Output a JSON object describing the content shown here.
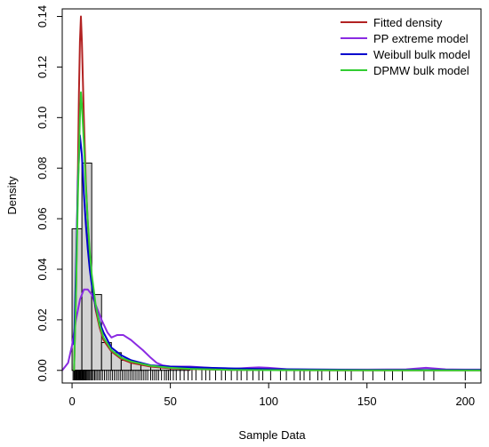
{
  "chart_data": {
    "type": "line",
    "title": "",
    "xlabel": "Sample Data",
    "ylabel": "Density",
    "xlim": [
      -5,
      208
    ],
    "ylim": [
      -0.005,
      0.143
    ],
    "x_ticks": [
      0,
      50,
      100,
      150,
      200
    ],
    "y_ticks": [
      0.0,
      0.02,
      0.04,
      0.06,
      0.08,
      0.1,
      0.12,
      0.14
    ],
    "x_tick_labels": [
      "0",
      "50",
      "100",
      "150",
      "200"
    ],
    "y_tick_labels": [
      "0.00",
      "0.02",
      "0.04",
      "0.06",
      "0.08",
      "0.10",
      "0.12",
      "0.14"
    ],
    "legend_position": "top-right",
    "histogram": {
      "bin_edges": [
        0,
        5,
        10,
        15,
        20,
        25,
        30,
        35,
        40,
        45,
        50,
        55,
        60
      ],
      "density": [
        0.056,
        0.082,
        0.03,
        0.011,
        0.007,
        0.004,
        0.003,
        0.002,
        0.0015,
        0.001,
        0.0008,
        0.0005
      ],
      "fill": "#d3d3d3",
      "stroke": "#000000"
    },
    "series": [
      {
        "name": "Fitted density",
        "color": "#b22222",
        "x": [
          1,
          2,
          3,
          3.5,
          4,
          4.5,
          5,
          6,
          7,
          8,
          9,
          10,
          12,
          14,
          16,
          20,
          25,
          30,
          40,
          50,
          60,
          80,
          100,
          150,
          208
        ],
        "y": [
          0.0,
          0.03,
          0.08,
          0.11,
          0.13,
          0.14,
          0.13,
          0.1,
          0.075,
          0.058,
          0.045,
          0.036,
          0.024,
          0.017,
          0.012,
          0.0075,
          0.0045,
          0.003,
          0.0015,
          0.0008,
          0.0005,
          0.0002,
          0.0001,
          0.0,
          0.0
        ]
      },
      {
        "name": "PP extreme model",
        "color": "#8a2be2",
        "x": [
          -5,
          -2,
          0,
          2,
          4,
          6,
          8,
          10,
          12,
          15,
          18,
          20,
          23,
          26,
          30,
          33,
          36,
          40,
          43,
          46,
          50,
          55,
          60,
          70,
          80,
          90,
          95,
          100,
          110,
          120,
          130,
          150,
          170,
          180,
          190,
          200,
          208
        ],
        "y": [
          0.0,
          0.003,
          0.01,
          0.02,
          0.028,
          0.032,
          0.032,
          0.03,
          0.026,
          0.02,
          0.015,
          0.013,
          0.014,
          0.014,
          0.012,
          0.01,
          0.008,
          0.005,
          0.003,
          0.002,
          0.0015,
          0.0015,
          0.0015,
          0.001,
          0.0005,
          0.001,
          0.0012,
          0.001,
          0.0004,
          0.0003,
          0.0003,
          0.0003,
          0.0004,
          0.001,
          0.0004,
          0.0003,
          0.0003
        ]
      },
      {
        "name": "Weibull bulk model",
        "color": "#0000cd",
        "x": [
          1,
          2,
          3,
          4,
          5,
          6,
          7,
          8,
          9,
          10,
          12,
          14,
          16,
          20,
          25,
          30,
          40,
          50,
          60,
          80,
          100,
          150,
          208
        ],
        "y": [
          0.01,
          0.04,
          0.075,
          0.093,
          0.085,
          0.07,
          0.058,
          0.048,
          0.04,
          0.034,
          0.025,
          0.019,
          0.015,
          0.009,
          0.006,
          0.004,
          0.002,
          0.0015,
          0.0012,
          0.0008,
          0.0005,
          0.0002,
          0.0002
        ]
      },
      {
        "name": "DPMW bulk model",
        "color": "#32cd32",
        "x": [
          1,
          2,
          3,
          4,
          4.5,
          5,
          6,
          7,
          8,
          9,
          10,
          12,
          14,
          16,
          20,
          25,
          30,
          40,
          50,
          60,
          80,
          100,
          208
        ],
        "y": [
          0.0,
          0.03,
          0.07,
          0.1,
          0.11,
          0.105,
          0.09,
          0.073,
          0.059,
          0.047,
          0.038,
          0.026,
          0.018,
          0.013,
          0.008,
          0.005,
          0.0035,
          0.0018,
          0.001,
          0.0006,
          0.0002,
          0.0001,
          0.0
        ]
      }
    ],
    "rug": [
      0.5,
      1,
      1.3,
      1.7,
      2,
      2.3,
      2.6,
      3,
      3.3,
      3.6,
      4,
      4.3,
      4.6,
      5,
      5.4,
      5.8,
      6.2,
      6.6,
      7,
      7.5,
      8,
      8.5,
      9,
      9.6,
      10.2,
      10.8,
      11.5,
      12.2,
      13,
      13.8,
      14.6,
      15.5,
      16.5,
      17.5,
      18.5,
      19.5,
      20.5,
      21.5,
      22.5,
      23.5,
      24.5,
      25.5,
      26.5,
      27.5,
      28.5,
      29.5,
      30.5,
      31.5,
      32.5,
      33.5,
      34.5,
      35.5,
      36.5,
      37.5,
      38.5,
      40,
      41,
      42,
      43,
      44,
      45.5,
      47,
      48,
      49,
      50,
      51.5,
      53,
      55,
      57,
      59,
      61,
      63,
      66,
      68,
      70,
      73,
      76,
      78,
      81,
      84,
      86,
      89,
      92,
      95,
      97,
      101,
      106,
      109,
      113,
      116,
      118,
      121,
      125,
      127,
      131,
      135,
      139,
      142,
      148,
      153,
      159,
      163,
      168,
      179,
      184,
      200
    ]
  }
}
